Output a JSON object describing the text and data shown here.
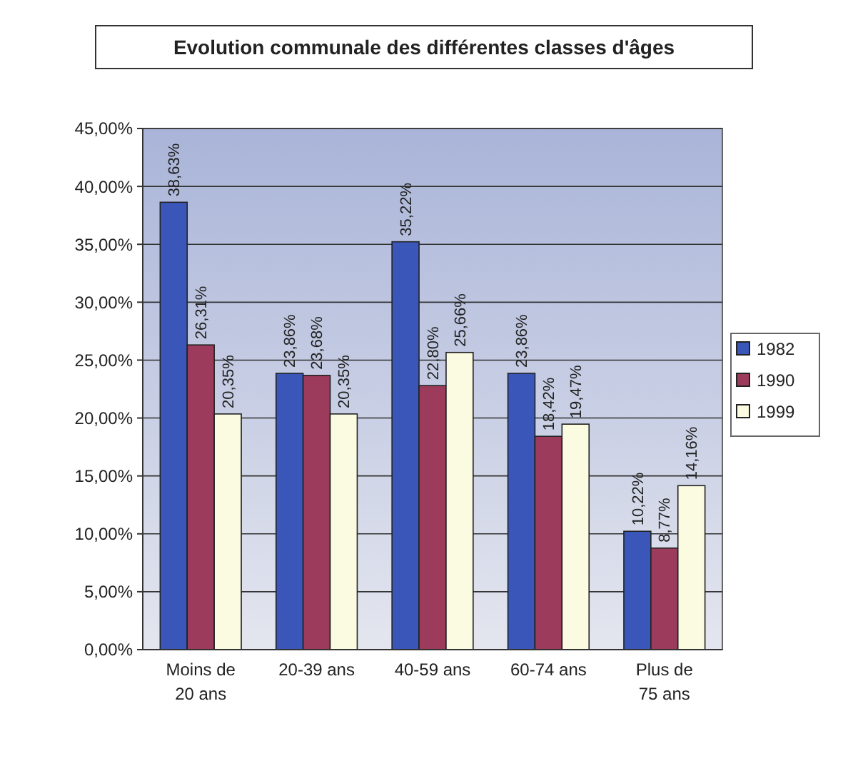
{
  "chart_data": {
    "type": "bar",
    "title": "Evolution communale des différentes classes d'âges",
    "categories": [
      "Moins de 20 ans",
      "20-39 ans",
      "40-59 ans",
      "60-74 ans",
      "Plus de 75 ans"
    ],
    "series": [
      {
        "name": "1982",
        "color": "#3a56b8",
        "values": [
          38.63,
          23.86,
          35.22,
          23.86,
          10.22
        ],
        "value_labels": [
          "38,63%",
          "23,86%",
          "35,22%",
          "23,86%",
          "10,22%"
        ]
      },
      {
        "name": "1990",
        "color": "#9c3b5c",
        "values": [
          26.31,
          23.68,
          22.8,
          18.42,
          8.77
        ],
        "value_labels": [
          "26,31%",
          "23,68%",
          "22,80%",
          "18,42%",
          "8,77%"
        ]
      },
      {
        "name": "1999",
        "color": "#fbfbe2",
        "values": [
          20.35,
          20.35,
          25.66,
          19.47,
          14.16
        ],
        "value_labels": [
          "20,35%",
          "20,35%",
          "25,66%",
          "19,47%",
          "14,16%"
        ]
      }
    ],
    "ylim": [
      0,
      45
    ],
    "yticks": [
      {
        "value": 0,
        "label": "0,00%"
      },
      {
        "value": 5,
        "label": "5,00%"
      },
      {
        "value": 10,
        "label": "10,00%"
      },
      {
        "value": 15,
        "label": "15,00%"
      },
      {
        "value": 20,
        "label": "20,00%"
      },
      {
        "value": 25,
        "label": "25,00%"
      },
      {
        "value": 30,
        "label": "30,00%"
      },
      {
        "value": 35,
        "label": "35,00%"
      },
      {
        "value": 40,
        "label": "40,00%"
      },
      {
        "value": 45,
        "label": "45,00%"
      }
    ],
    "grid": "y",
    "legend": "right"
  }
}
